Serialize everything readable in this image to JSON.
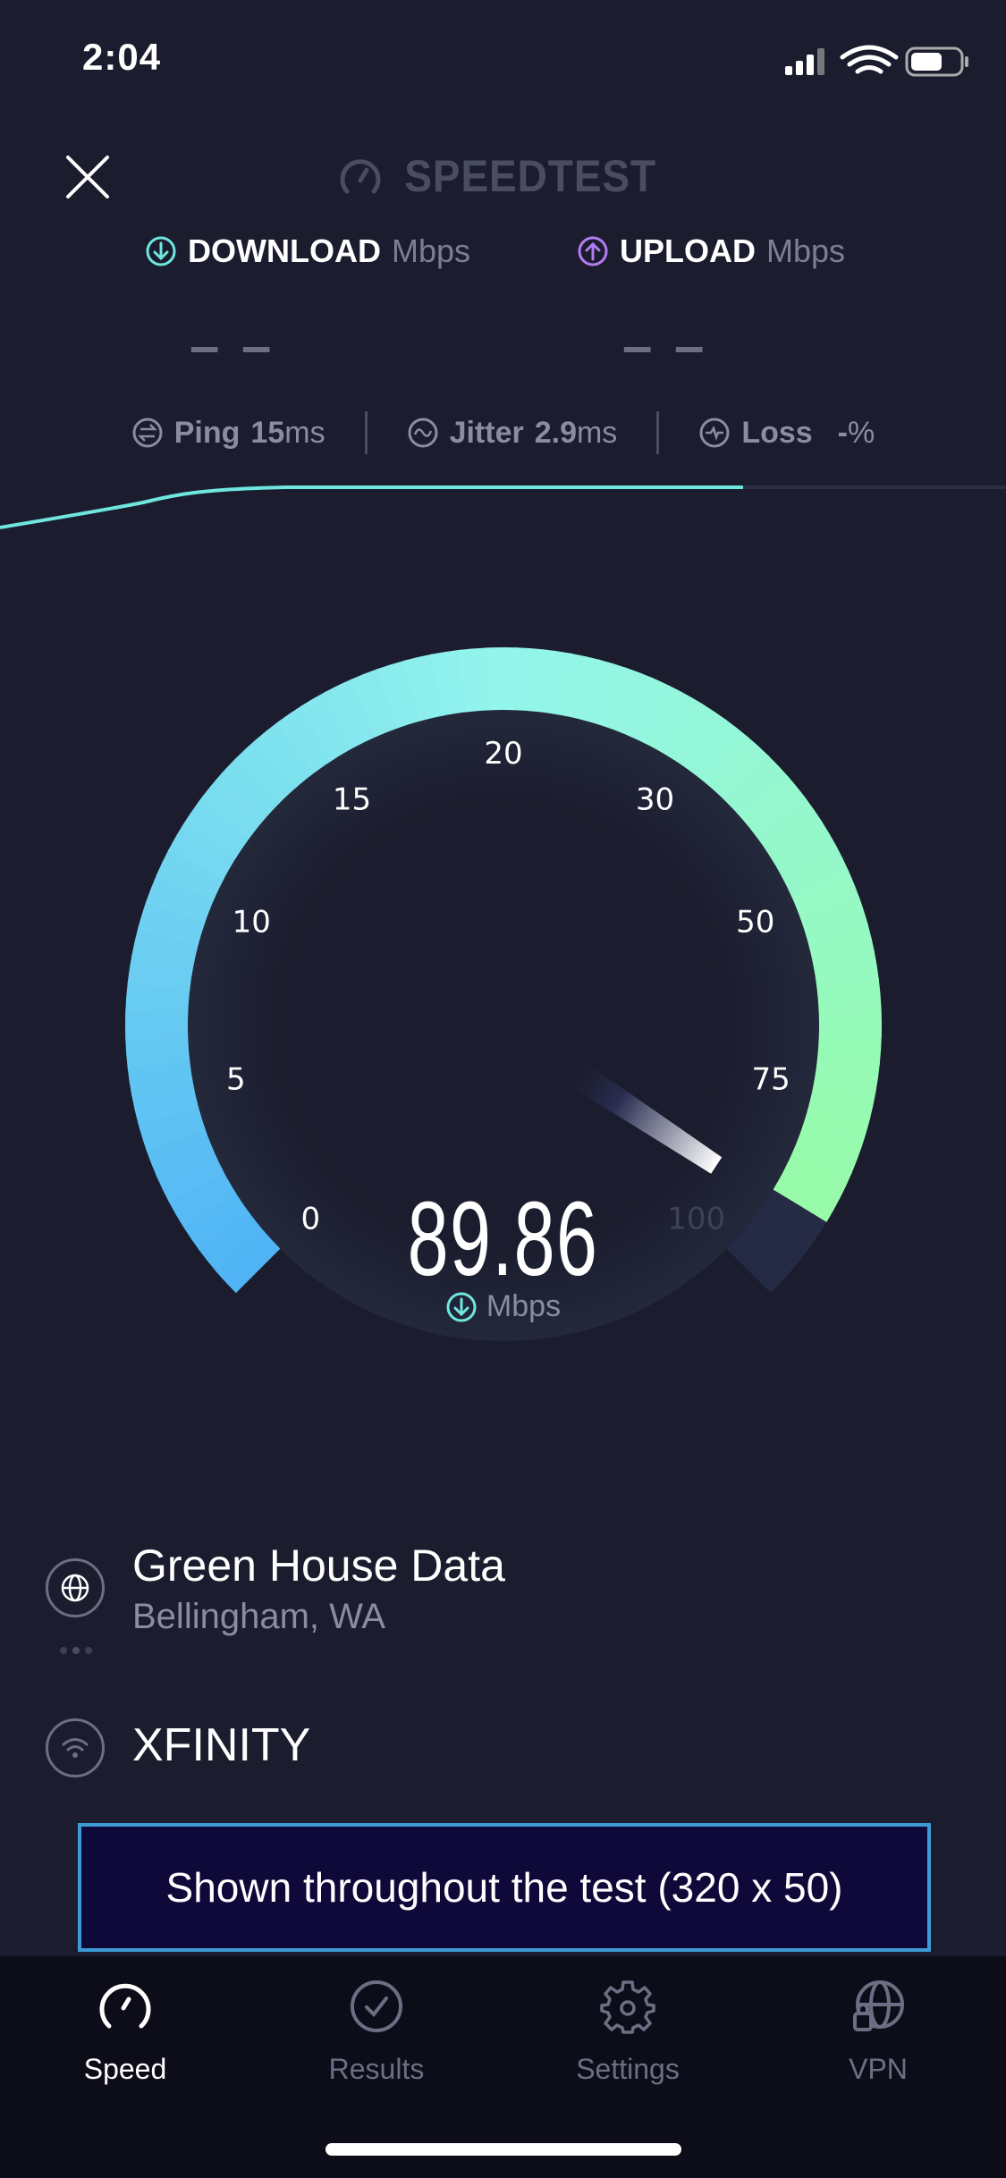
{
  "status_bar": {
    "time": "2:04",
    "icons": [
      "cellular-signal-icon",
      "wifi-icon",
      "battery-icon"
    ]
  },
  "header": {
    "close_icon": "close-icon",
    "logo_text": "SPEEDTEST"
  },
  "metrics": {
    "download": {
      "label": "DOWNLOAD",
      "unit": "Mbps",
      "value": "– –",
      "color": "#6fe6e0"
    },
    "upload": {
      "label": "UPLOAD",
      "unit": "Mbps",
      "value": "– –",
      "color": "#b57bf2"
    }
  },
  "stats": {
    "ping": {
      "label": "Ping",
      "value": "15",
      "unit": "ms"
    },
    "jitter": {
      "label": "Jitter",
      "value": "2.9",
      "unit": "ms"
    },
    "loss": {
      "label": "Loss",
      "value": "-",
      "unit": "%"
    }
  },
  "gauge": {
    "tick_labels": [
      "0",
      "5",
      "10",
      "15",
      "20",
      "30",
      "50",
      "75",
      "100"
    ],
    "value": 89.86,
    "reading": "89.86",
    "unit": "Mbps",
    "colors": {
      "start": "#4fb3f5",
      "mid": "#93f5ec",
      "end": "#98fca0",
      "track": "#252a45"
    }
  },
  "server": {
    "name": "Green House Data",
    "location": "Bellingham, WA"
  },
  "isp": {
    "name": "XFINITY"
  },
  "ad": {
    "text": "Shown throughout the test (320 x 50)"
  },
  "tabs": [
    {
      "label": "Speed",
      "icon": "speedometer-icon",
      "active": true
    },
    {
      "label": "Results",
      "icon": "checkmark-circle-icon",
      "active": false
    },
    {
      "label": "Settings",
      "icon": "gear-icon",
      "active": false
    },
    {
      "label": "VPN",
      "icon": "globe-lock-icon",
      "active": false
    }
  ]
}
